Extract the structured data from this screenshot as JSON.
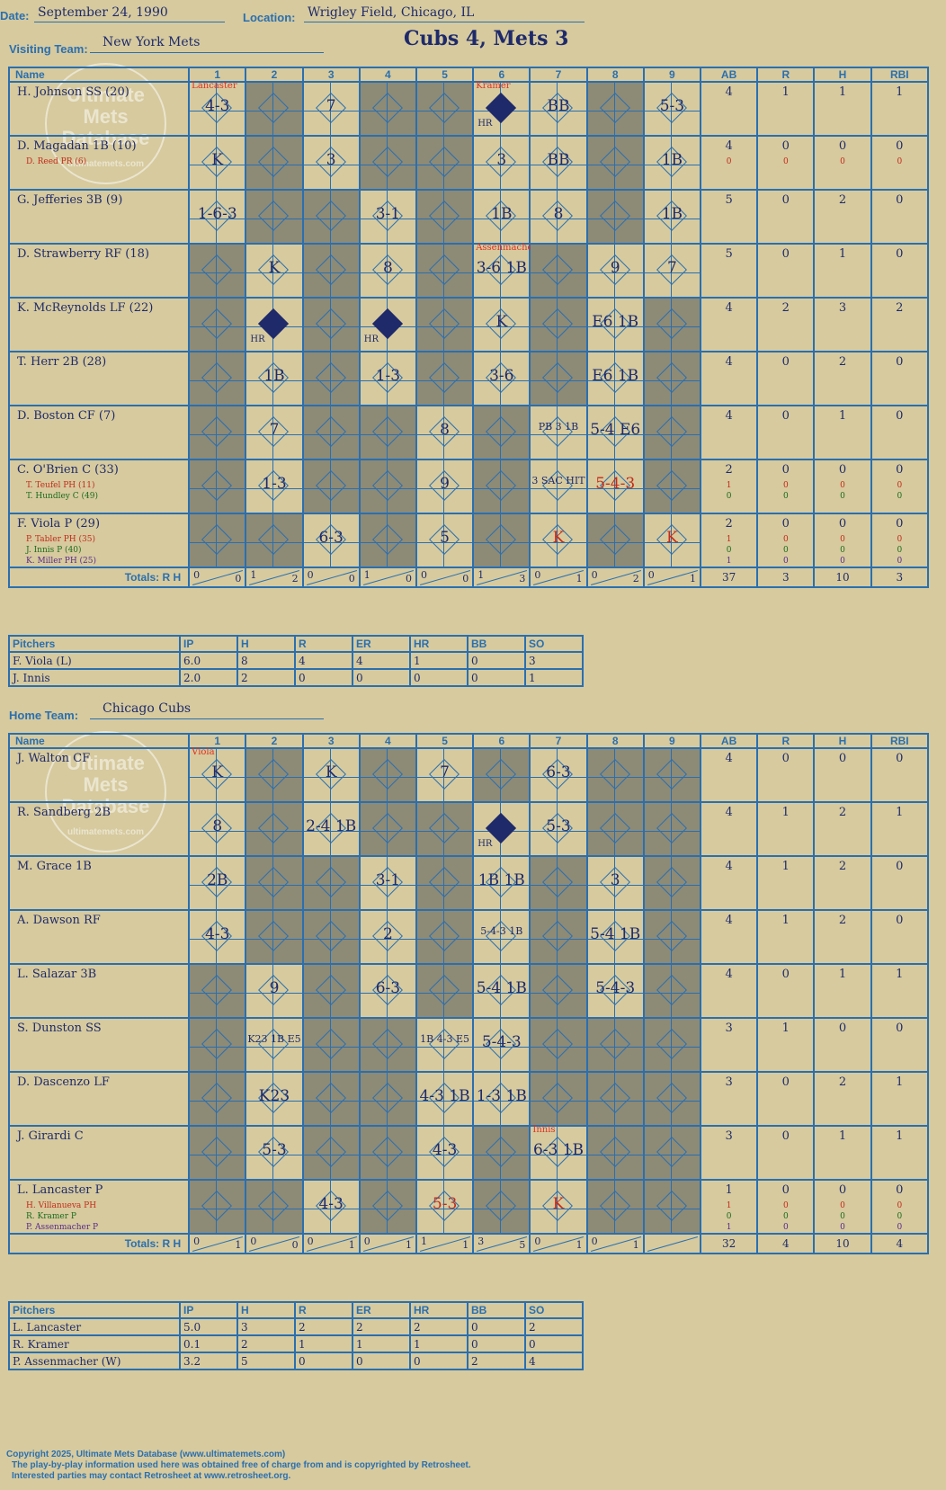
{
  "header": {
    "date_label": "Date:",
    "date": "September 24, 1990",
    "location_label": "Location:",
    "location": "Wrigley Field, Chicago, IL",
    "visiting_label": "Visiting Team:",
    "visiting_team": "New York Mets",
    "home_label": "Home Team:",
    "home_team": "Chicago Cubs",
    "result": "Cubs 4, Mets 3"
  },
  "columns": {
    "name": "Name",
    "innings": [
      "1",
      "2",
      "3",
      "4",
      "5",
      "6",
      "7",
      "8",
      "9"
    ],
    "ab": "AB",
    "r": "R",
    "h": "H",
    "rbi": "RBI",
    "totals": "Totals:",
    "r_short": "R",
    "h_short": "H"
  },
  "watermark": {
    "line1": "Ultimate",
    "line2": "Mets",
    "line3": "Database",
    "line4": "ultimatemets.com"
  },
  "visitor": {
    "rows": [
      {
        "name": "H. Johnson SS (20)",
        "subs": [],
        "ab": "4",
        "r": "1",
        "h": "1",
        "rbi": "1",
        "sub_stats": [],
        "cells": [
          "4-3",
          "",
          "7",
          "",
          "",
          "HR",
          "BB",
          "",
          "5-3"
        ]
      },
      {
        "name": "D. Magadan 1B (10)",
        "subs": [
          {
            "text": "D. Reed PR (6)",
            "color": "red"
          }
        ],
        "ab": "4",
        "r": "0",
        "h": "0",
        "rbi": "0",
        "sub_stats": [
          [
            "0",
            "0",
            "0",
            "0"
          ]
        ],
        "cells": [
          "K",
          "",
          "3",
          "",
          "",
          "3",
          "BB",
          "",
          "1B"
        ]
      },
      {
        "name": "G. Jefferies 3B (9)",
        "subs": [],
        "ab": "5",
        "r": "0",
        "h": "2",
        "rbi": "0",
        "sub_stats": [],
        "cells": [
          "1-6-3",
          "",
          "",
          "3-1",
          "",
          "1B",
          "8",
          "",
          "1B"
        ]
      },
      {
        "name": "D. Strawberry RF (18)",
        "subs": [],
        "ab": "5",
        "r": "0",
        "h": "1",
        "rbi": "0",
        "sub_stats": [],
        "cells": [
          "",
          "K",
          "",
          "8",
          "",
          "3-6 1B",
          "",
          "9",
          "7"
        ]
      },
      {
        "name": "K. McReynolds LF (22)",
        "subs": [],
        "ab": "4",
        "r": "2",
        "h": "3",
        "rbi": "2",
        "sub_stats": [],
        "cells": [
          "",
          "HR",
          "",
          "HR",
          "",
          "K",
          "",
          "E6 1B",
          ""
        ]
      },
      {
        "name": "T. Herr 2B (28)",
        "subs": [],
        "ab": "4",
        "r": "0",
        "h": "2",
        "rbi": "0",
        "sub_stats": [],
        "cells": [
          "",
          "1B",
          "",
          "1-3",
          "",
          "3-6",
          "",
          "E6 1B",
          ""
        ]
      },
      {
        "name": "D. Boston CF (7)",
        "subs": [],
        "ab": "4",
        "r": "0",
        "h": "1",
        "rbi": "0",
        "sub_stats": [],
        "cells": [
          "",
          "7",
          "",
          "",
          "8",
          "",
          "PB 3 1B",
          "5-4 E6",
          ""
        ]
      },
      {
        "name": "C. O'Brien C (33)",
        "subs": [
          {
            "text": "T. Teufel PH (11)",
            "color": "red"
          },
          {
            "text": "T. Hundley C (49)",
            "color": "grn"
          }
        ],
        "ab": "2",
        "r": "0",
        "h": "0",
        "rbi": "0",
        "sub_stats": [
          [
            "1",
            "0",
            "0",
            "0"
          ],
          [
            "0",
            "0",
            "0",
            "0"
          ]
        ],
        "cells": [
          "",
          "1-3",
          "",
          "",
          "9",
          "",
          "3 SAC HIT",
          "5-4-3",
          ""
        ]
      },
      {
        "name": "F. Viola P (29)",
        "subs": [
          {
            "text": "P. Tabler PH (35)",
            "color": "red"
          },
          {
            "text": "J. Innis P (40)",
            "color": "grn"
          },
          {
            "text": "K. Miller PH (25)",
            "color": "pur"
          }
        ],
        "ab": "2",
        "r": "0",
        "h": "0",
        "rbi": "0",
        "sub_stats": [
          [
            "1",
            "0",
            "0",
            "0"
          ],
          [
            "0",
            "0",
            "0",
            "0"
          ],
          [
            "1",
            "0",
            "0",
            "0"
          ]
        ],
        "cells": [
          "",
          "",
          "6-3",
          "",
          "5",
          "",
          "K",
          "",
          "K"
        ]
      }
    ],
    "totals": {
      "innings": [
        [
          "0",
          "0"
        ],
        [
          "1",
          "2"
        ],
        [
          "0",
          "0"
        ],
        [
          "1",
          "0"
        ],
        [
          "0",
          "0"
        ],
        [
          "1",
          "3"
        ],
        [
          "0",
          "1"
        ],
        [
          "0",
          "2"
        ],
        [
          "0",
          "1"
        ]
      ],
      "ab": "37",
      "r": "3",
      "h": "10",
      "rbi": "3"
    },
    "pitchers": [
      {
        "name": "F. Viola (L)",
        "ip": "6.0",
        "h": "8",
        "r": "4",
        "er": "4",
        "hr": "1",
        "bb": "0",
        "so": "3"
      },
      {
        "name": "J. Innis",
        "ip": "2.0",
        "h": "2",
        "r": "0",
        "er": "0",
        "hr": "0",
        "bb": "0",
        "so": "1"
      }
    ],
    "pitch_labels": [
      "Lancaster",
      "Kramer",
      "Assenmacher"
    ]
  },
  "home": {
    "rows": [
      {
        "name": "J. Walton CF",
        "subs": [],
        "ab": "4",
        "r": "0",
        "h": "0",
        "rbi": "0",
        "sub_stats": [],
        "cells": [
          "K",
          "",
          "K",
          "",
          "7",
          "",
          "6-3",
          "",
          ""
        ]
      },
      {
        "name": "R. Sandberg 2B",
        "subs": [],
        "ab": "4",
        "r": "1",
        "h": "2",
        "rbi": "1",
        "sub_stats": [],
        "cells": [
          "8",
          "",
          "2-4 1B",
          "",
          "",
          "HR",
          "5-3",
          "",
          ""
        ]
      },
      {
        "name": "M. Grace 1B",
        "subs": [],
        "ab": "4",
        "r": "1",
        "h": "2",
        "rbi": "0",
        "sub_stats": [],
        "cells": [
          "2B",
          "",
          "",
          "3-1",
          "",
          "1B 1B",
          "",
          "3",
          ""
        ]
      },
      {
        "name": "A. Dawson RF",
        "subs": [],
        "ab": "4",
        "r": "1",
        "h": "2",
        "rbi": "0",
        "sub_stats": [],
        "cells": [
          "4-3",
          "",
          "",
          "2",
          "",
          "5-4-3 1B",
          "",
          "5-4 1B",
          ""
        ]
      },
      {
        "name": "L. Salazar 3B",
        "subs": [],
        "ab": "4",
        "r": "0",
        "h": "1",
        "rbi": "1",
        "sub_stats": [],
        "cells": [
          "",
          "9",
          "",
          "6-3",
          "",
          "5-4 1B",
          "",
          "5-4-3",
          ""
        ]
      },
      {
        "name": "S. Dunston SS",
        "subs": [],
        "ab": "3",
        "r": "1",
        "h": "0",
        "rbi": "0",
        "sub_stats": [],
        "cells": [
          "",
          "K23 1B E5",
          "",
          "",
          "1B 4-3 E5",
          "5-4-3",
          "",
          "",
          ""
        ]
      },
      {
        "name": "D. Dascenzo LF",
        "subs": [],
        "ab": "3",
        "r": "0",
        "h": "2",
        "rbi": "1",
        "sub_stats": [],
        "cells": [
          "",
          "K23",
          "",
          "",
          "4-3 1B",
          "1-3 1B",
          "",
          "",
          ""
        ]
      },
      {
        "name": "J. Girardi C",
        "subs": [],
        "ab": "3",
        "r": "0",
        "h": "1",
        "rbi": "1",
        "sub_stats": [],
        "cells": [
          "",
          "5-3",
          "",
          "",
          "4-3",
          "",
          "6-3 1B",
          "",
          ""
        ]
      },
      {
        "name": "L. Lancaster P",
        "subs": [
          {
            "text": "H. Villanueva PH",
            "color": "red"
          },
          {
            "text": "R. Kramer P",
            "color": "grn"
          },
          {
            "text": "P. Assenmacher P",
            "color": "pur"
          }
        ],
        "ab": "1",
        "r": "0",
        "h": "0",
        "rbi": "0",
        "sub_stats": [
          [
            "1",
            "0",
            "0",
            "0"
          ],
          [
            "0",
            "0",
            "0",
            "0"
          ],
          [
            "1",
            "0",
            "0",
            "0"
          ]
        ],
        "cells": [
          "",
          "",
          "4-3",
          "",
          "5-3",
          "",
          "K",
          "",
          ""
        ]
      }
    ],
    "totals": {
      "innings": [
        [
          "0",
          "1"
        ],
        [
          "0",
          "0"
        ],
        [
          "0",
          "1"
        ],
        [
          "0",
          "1"
        ],
        [
          "1",
          "1"
        ],
        [
          "3",
          "5"
        ],
        [
          "0",
          "1"
        ],
        [
          "0",
          "1"
        ],
        [
          "",
          ""
        ]
      ],
      "ab": "32",
      "r": "4",
      "h": "10",
      "rbi": "4"
    },
    "pitchers": [
      {
        "name": "L. Lancaster",
        "ip": "5.0",
        "h": "3",
        "r": "2",
        "er": "2",
        "hr": "2",
        "bb": "0",
        "so": "2"
      },
      {
        "name": "R. Kramer",
        "ip": "0.1",
        "h": "2",
        "r": "1",
        "er": "1",
        "hr": "1",
        "bb": "0",
        "so": "0"
      },
      {
        "name": "P. Assenmacher (W)",
        "ip": "3.2",
        "h": "5",
        "r": "0",
        "er": "0",
        "hr": "0",
        "bb": "2",
        "so": "4"
      }
    ],
    "pitch_labels": [
      "Viola",
      "Innis"
    ]
  },
  "pitcher_headers": {
    "pitchers": "Pitchers",
    "ip": "IP",
    "h": "H",
    "r": "R",
    "er": "ER",
    "hr": "HR",
    "bb": "BB",
    "so": "SO"
  },
  "footer": {
    "line1": "Copyright 2025, Ultimate Mets Database (www.ultimatemets.com)",
    "line2": "The play-by-play information used here was obtained free of charge from and is copyrighted by Retrosheet.",
    "line3": "Interested parties may contact Retrosheet at www.retrosheet.org."
  }
}
